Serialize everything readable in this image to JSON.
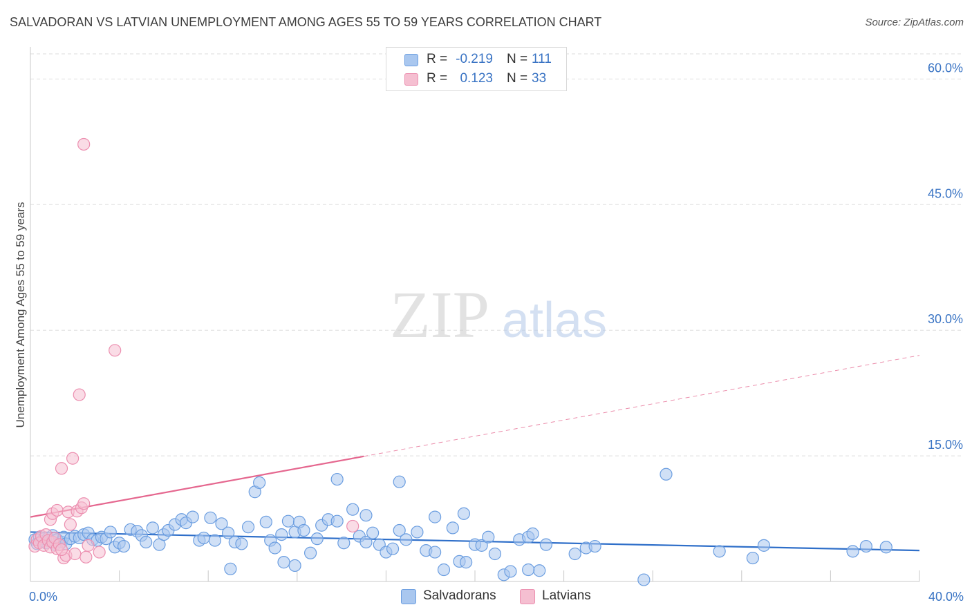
{
  "header": {
    "title": "SALVADORAN VS LATVIAN UNEMPLOYMENT AMONG AGES 55 TO 59 YEARS CORRELATION CHART",
    "source": "Source: ZipAtlas.com"
  },
  "watermark": {
    "zip": "ZIP",
    "atlas": "atlas"
  },
  "legend": {
    "r_label": "R =",
    "n_label": "N =",
    "items": [
      {
        "r": "-0.219",
        "n": "111"
      },
      {
        "r": "0.123",
        "n": "33"
      }
    ]
  },
  "bottom_legend": {
    "salvadorans": "Salvadorans",
    "latvians": "Latvians"
  },
  "colors": {
    "blue_fill": "#a9c7ef",
    "blue_stroke": "#6a9de0",
    "blue_line": "#2f6fc9",
    "pink_fill": "#f5bfd1",
    "pink_stroke": "#ec8fb0",
    "pink_line": "#e5678f",
    "tick_text": "#3a74c4",
    "grid": "#dedede"
  },
  "chart_data": {
    "type": "scatter",
    "title": "SALVADORAN VS LATVIAN UNEMPLOYMENT AMONG AGES 55 TO 59 YEARS CORRELATION CHART",
    "xlabel": "",
    "ylabel": "Unemployment Among Ages 55 to 59 years",
    "xlim": [
      0,
      40
    ],
    "ylim": [
      0,
      63
    ],
    "x_tick_labels": [
      {
        "value": 0,
        "label": "0.0%"
      },
      {
        "value": 40,
        "label": "40.0%"
      }
    ],
    "y_tick_labels": [
      {
        "value": 15,
        "label": "15.0%"
      },
      {
        "value": 30,
        "label": "30.0%"
      },
      {
        "value": 45,
        "label": "45.0%"
      },
      {
        "value": 60,
        "label": "60.0%"
      }
    ],
    "x_minor_ticks": [
      4,
      8,
      12,
      16,
      20,
      24,
      28,
      32,
      36
    ],
    "grid": true,
    "legend_position": "top-center",
    "series": [
      {
        "name": "Salvadorans",
        "r": -0.219,
        "n": 111,
        "trend": {
          "x0": 0,
          "y0": 5.9,
          "x1": 40,
          "y1": 3.7,
          "dashed_from": null
        },
        "points": [
          [
            0.2,
            5.0
          ],
          [
            0.3,
            4.5
          ],
          [
            0.4,
            5.3
          ],
          [
            0.5,
            4.8
          ],
          [
            0.6,
            5.1
          ],
          [
            0.7,
            4.6
          ],
          [
            0.8,
            5.2
          ],
          [
            0.9,
            4.9
          ],
          [
            1.0,
            5.5
          ],
          [
            1.1,
            4.4
          ],
          [
            1.2,
            5.0
          ],
          [
            1.4,
            4.7
          ],
          [
            1.5,
            5.3
          ],
          [
            1.6,
            4.5
          ],
          [
            1.8,
            5.1
          ],
          [
            2.0,
            5.4
          ],
          [
            2.2,
            5.2
          ],
          [
            2.4,
            5.6
          ],
          [
            2.6,
            5.8
          ],
          [
            2.8,
            5.0
          ],
          [
            3.0,
            4.9
          ],
          [
            3.2,
            5.3
          ],
          [
            3.4,
            5.1
          ],
          [
            3.6,
            5.9
          ],
          [
            3.8,
            4.1
          ],
          [
            4.0,
            4.6
          ],
          [
            4.2,
            4.2
          ],
          [
            4.5,
            6.2
          ],
          [
            4.8,
            6.0
          ],
          [
            5.0,
            5.5
          ],
          [
            5.2,
            4.7
          ],
          [
            5.5,
            6.4
          ],
          [
            5.8,
            4.4
          ],
          [
            6.0,
            5.6
          ],
          [
            6.2,
            6.1
          ],
          [
            6.5,
            6.8
          ],
          [
            6.8,
            7.4
          ],
          [
            7.0,
            7.0
          ],
          [
            7.3,
            7.7
          ],
          [
            7.6,
            4.9
          ],
          [
            7.8,
            5.2
          ],
          [
            8.1,
            7.6
          ],
          [
            8.3,
            4.9
          ],
          [
            8.6,
            6.9
          ],
          [
            8.9,
            5.8
          ],
          [
            9.2,
            4.7
          ],
          [
            9.5,
            4.5
          ],
          [
            9.8,
            6.5
          ],
          [
            10.1,
            10.7
          ],
          [
            10.3,
            11.8
          ],
          [
            10.6,
            7.1
          ],
          [
            10.8,
            4.9
          ],
          [
            11.0,
            4.0
          ],
          [
            11.3,
            5.6
          ],
          [
            11.6,
            7.2
          ],
          [
            11.9,
            5.9
          ],
          [
            12.1,
            7.1
          ],
          [
            12.3,
            6.1
          ],
          [
            12.6,
            3.4
          ],
          [
            12.9,
            5.1
          ],
          [
            13.1,
            6.7
          ],
          [
            13.4,
            7.4
          ],
          [
            13.8,
            7.2
          ],
          [
            14.1,
            4.6
          ],
          [
            14.5,
            8.6
          ],
          [
            14.8,
            5.4
          ],
          [
            15.1,
            4.7
          ],
          [
            15.4,
            5.8
          ],
          [
            15.7,
            4.4
          ],
          [
            16.0,
            3.5
          ],
          [
            16.3,
            3.9
          ],
          [
            16.6,
            6.1
          ],
          [
            16.9,
            5.0
          ],
          [
            17.4,
            5.9
          ],
          [
            17.8,
            3.7
          ],
          [
            18.2,
            3.5
          ],
          [
            18.6,
            1.4
          ],
          [
            19.0,
            6.4
          ],
          [
            19.3,
            2.4
          ],
          [
            19.6,
            2.3
          ],
          [
            20.0,
            4.4
          ],
          [
            20.3,
            4.3
          ],
          [
            20.6,
            5.3
          ],
          [
            20.9,
            3.3
          ],
          [
            21.3,
            0.8
          ],
          [
            21.6,
            1.2
          ],
          [
            22.0,
            5.0
          ],
          [
            22.4,
            5.3
          ],
          [
            22.6,
            5.7
          ],
          [
            22.9,
            1.3
          ],
          [
            23.2,
            4.4
          ],
          [
            13.8,
            12.2
          ],
          [
            15.1,
            7.9
          ],
          [
            16.6,
            11.9
          ],
          [
            28.6,
            12.8
          ],
          [
            18.2,
            7.7
          ],
          [
            19.5,
            8.1
          ],
          [
            24.5,
            3.3
          ],
          [
            25.0,
            4.0
          ],
          [
            25.4,
            4.2
          ],
          [
            27.6,
            0.2
          ],
          [
            31.0,
            3.6
          ],
          [
            32.5,
            2.8
          ],
          [
            33.0,
            4.3
          ],
          [
            37.0,
            3.6
          ],
          [
            37.6,
            4.2
          ],
          [
            38.5,
            4.1
          ],
          [
            11.4,
            2.3
          ],
          [
            22.4,
            1.4
          ],
          [
            11.9,
            1.9
          ],
          [
            9.0,
            1.5
          ]
        ]
      },
      {
        "name": "Latvians",
        "r": 0.123,
        "n": 33,
        "trend": {
          "x0": 0,
          "y0": 7.7,
          "x1": 40,
          "y1": 27.0,
          "dashed_from": 15
        },
        "points": [
          [
            0.2,
            4.2
          ],
          [
            0.3,
            5.0
          ],
          [
            0.4,
            4.6
          ],
          [
            0.5,
            5.4
          ],
          [
            0.6,
            4.3
          ],
          [
            0.7,
            5.6
          ],
          [
            0.8,
            4.9
          ],
          [
            0.9,
            4.1
          ],
          [
            1.0,
            4.7
          ],
          [
            1.1,
            5.2
          ],
          [
            1.2,
            3.9
          ],
          [
            1.3,
            4.4
          ],
          [
            0.9,
            7.4
          ],
          [
            1.0,
            8.1
          ],
          [
            1.2,
            8.5
          ],
          [
            1.4,
            13.5
          ],
          [
            1.5,
            2.8
          ],
          [
            1.6,
            3.1
          ],
          [
            1.7,
            8.3
          ],
          [
            1.8,
            6.8
          ],
          [
            1.9,
            14.7
          ],
          [
            2.0,
            3.3
          ],
          [
            2.1,
            8.4
          ],
          [
            2.2,
            22.3
          ],
          [
            2.3,
            8.8
          ],
          [
            2.4,
            9.3
          ],
          [
            2.5,
            2.9
          ],
          [
            2.6,
            4.3
          ],
          [
            2.4,
            52.2
          ],
          [
            3.1,
            3.5
          ],
          [
            3.8,
            27.6
          ],
          [
            14.5,
            6.6
          ],
          [
            1.4,
            3.8
          ]
        ]
      }
    ]
  }
}
